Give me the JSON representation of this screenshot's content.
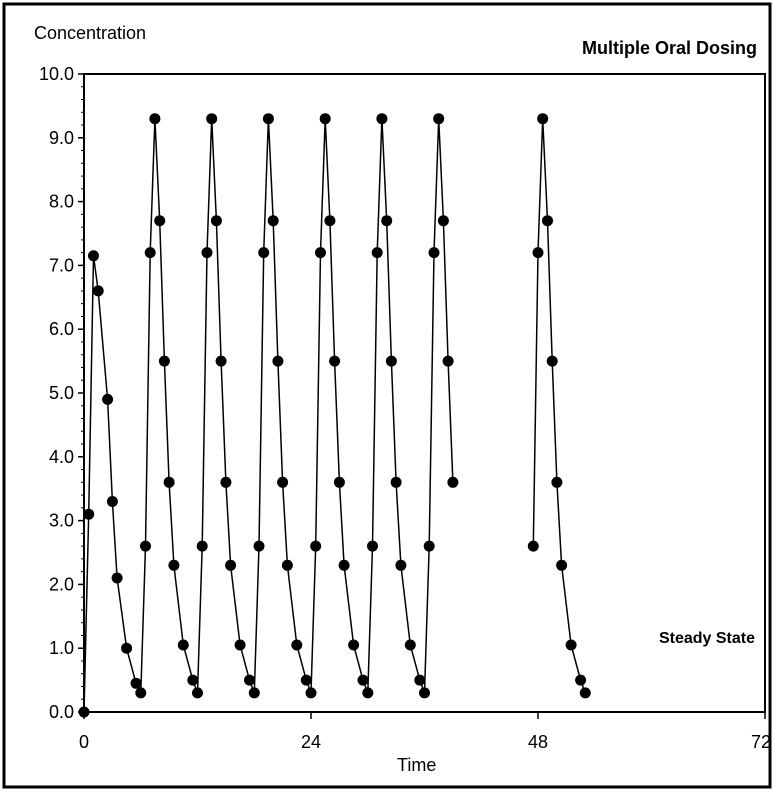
{
  "chart_data": {
    "type": "scatter",
    "title": "Multiple Oral Dosing",
    "ylabel": "Concentration",
    "xlabel": "Time",
    "annotation": "Steady State",
    "xlim": [
      0,
      72
    ],
    "ylim": [
      0,
      10
    ],
    "x_ticks": [
      0,
      24,
      48,
      72
    ],
    "x_tick_labels": [
      "0",
      "24",
      "48",
      "72"
    ],
    "y_ticks": [
      0,
      1,
      2,
      3,
      4,
      5,
      6,
      7,
      8,
      9,
      10
    ],
    "y_tick_labels": [
      "0.0",
      "1.0",
      "2.0",
      "3.0",
      "4.0",
      "5.0",
      "6.0",
      "7.0",
      "8.0",
      "9.0",
      "10.0"
    ],
    "grid": false,
    "marker": "filled-circle",
    "line_color": "#000000",
    "segments": [
      [
        [
          0,
          0
        ],
        [
          0.5,
          3.1
        ],
        [
          1,
          7.15
        ],
        [
          1.5,
          6.6
        ],
        [
          2.5,
          4.9
        ],
        [
          3,
          3.3
        ],
        [
          3.5,
          2.1
        ],
        [
          4.5,
          1.0
        ],
        [
          5.5,
          0.45
        ],
        [
          6,
          0.3
        ],
        [
          6.5,
          2.6
        ],
        [
          7,
          7.2
        ],
        [
          7.5,
          9.3
        ],
        [
          8,
          7.7
        ],
        [
          8.5,
          5.5
        ],
        [
          9,
          3.6
        ],
        [
          9.5,
          2.3
        ],
        [
          10.5,
          1.05
        ],
        [
          11.5,
          0.5
        ],
        [
          12,
          0.3
        ],
        [
          12.5,
          2.6
        ],
        [
          13,
          7.2
        ],
        [
          13.5,
          9.3
        ],
        [
          14,
          7.7
        ],
        [
          14.5,
          5.5
        ],
        [
          15,
          3.6
        ],
        [
          15.5,
          2.3
        ],
        [
          16.5,
          1.05
        ],
        [
          17.5,
          0.5
        ],
        [
          18,
          0.3
        ],
        [
          18.5,
          2.6
        ],
        [
          19,
          7.2
        ],
        [
          19.5,
          9.3
        ],
        [
          20,
          7.7
        ],
        [
          20.5,
          5.5
        ],
        [
          21,
          3.6
        ],
        [
          21.5,
          2.3
        ],
        [
          22.5,
          1.05
        ],
        [
          23.5,
          0.5
        ],
        [
          24,
          0.3
        ],
        [
          24.5,
          2.6
        ],
        [
          25,
          7.2
        ],
        [
          25.5,
          9.3
        ],
        [
          26,
          7.7
        ],
        [
          26.5,
          5.5
        ],
        [
          27,
          3.6
        ],
        [
          27.5,
          2.3
        ],
        [
          28.5,
          1.05
        ],
        [
          29.5,
          0.5
        ],
        [
          30,
          0.3
        ],
        [
          30.5,
          2.6
        ],
        [
          31,
          7.2
        ],
        [
          31.5,
          9.3
        ],
        [
          32,
          7.7
        ],
        [
          32.5,
          5.5
        ],
        [
          33,
          3.6
        ],
        [
          33.5,
          2.3
        ],
        [
          34.5,
          1.05
        ],
        [
          35.5,
          0.5
        ],
        [
          36,
          0.3
        ],
        [
          36.5,
          2.6
        ],
        [
          37,
          7.2
        ],
        [
          37.5,
          9.3
        ],
        [
          38,
          7.7
        ],
        [
          38.5,
          5.5
        ],
        [
          39,
          3.6
        ]
      ],
      [
        [
          47.5,
          2.6
        ],
        [
          48,
          7.2
        ],
        [
          48.5,
          9.3
        ],
        [
          49,
          7.7
        ],
        [
          49.5,
          5.5
        ],
        [
          50,
          3.6
        ],
        [
          50.5,
          2.3
        ],
        [
          51.5,
          1.05
        ],
        [
          52.5,
          0.5
        ],
        [
          53,
          0.3
        ]
      ]
    ]
  }
}
